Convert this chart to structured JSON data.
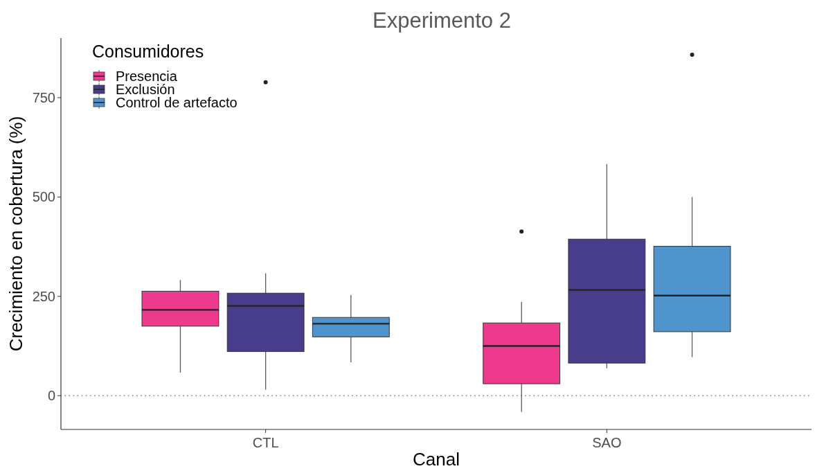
{
  "chart_data": {
    "type": "box",
    "title": "Experimento 2",
    "xlabel": "Canal",
    "ylabel": "Crecimiento en cobertura (%)",
    "legend_title": "Consumidores",
    "legend": "top left",
    "categories": [
      "CTL",
      "SAO"
    ],
    "ylim": [
      -85,
      900
    ],
    "yticks": [
      0,
      250,
      500,
      750
    ],
    "ref_lines": [
      {
        "axis": "y",
        "value": 0,
        "color": "#999999",
        "line_style": "dotted"
      }
    ],
    "series": [
      {
        "name": "Presencia",
        "color": "#ee3a8c",
        "boxes": [
          {
            "low": 58,
            "q1": 175,
            "median": 216,
            "q3": 263,
            "high": 291
          },
          {
            "low": -41,
            "q1": 30,
            "median": 125,
            "q3": 183,
            "high": 236,
            "outliers": [
              413
            ]
          }
        ]
      },
      {
        "name": "Exclusión",
        "color": "#483d8b",
        "boxes": [
          {
            "low": 15,
            "q1": 111,
            "median": 226,
            "q3": 258,
            "high": 308,
            "outliers": [
              789
            ]
          },
          {
            "low": 69,
            "q1": 82,
            "median": 266,
            "q3": 394,
            "high": 583
          }
        ]
      },
      {
        "name": "Control de artefacto",
        "color": "#4f94cd",
        "boxes": [
          {
            "low": 84,
            "q1": 148,
            "median": 181,
            "q3": 197,
            "high": 253
          },
          {
            "low": 97,
            "q1": 161,
            "median": 252,
            "q3": 376,
            "high": 500,
            "outliers": [
              858
            ]
          }
        ]
      }
    ]
  }
}
